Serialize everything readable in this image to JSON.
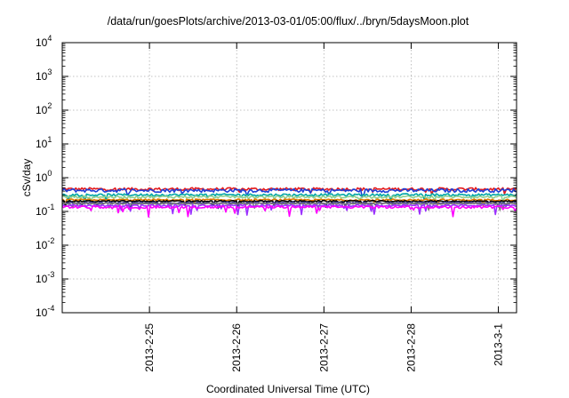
{
  "chart_data": {
    "type": "line",
    "title": "/data/run/goesPlots/archive/2013-03-01/05:00/flux/../bryn/5daysMoon.plot",
    "xlabel": "Coordinated Universal Time (UTC)",
    "ylabel": "cSv/day",
    "yscale": "log",
    "ylim": [
      0.0001,
      10000
    ],
    "xlim": [
      "2013-02-24 00:00",
      "2013-03-01 05:00"
    ],
    "grid": true,
    "y_ticks": [
      {
        "base": "10",
        "exp": "-4"
      },
      {
        "base": "10",
        "exp": "-3"
      },
      {
        "base": "10",
        "exp": "-2"
      },
      {
        "base": "10",
        "exp": "-1"
      },
      {
        "base": "10",
        "exp": "0"
      },
      {
        "base": "10",
        "exp": "1"
      },
      {
        "base": "10",
        "exp": "2"
      },
      {
        "base": "10",
        "exp": "3"
      },
      {
        "base": "10",
        "exp": "4"
      }
    ],
    "x_ticks": [
      {
        "label": "2013-2-25",
        "x": "2013-02-25 00:00"
      },
      {
        "label": "2013-2-26",
        "x": "2013-02-26 00:00"
      },
      {
        "label": "2013-2-27",
        "x": "2013-02-27 00:00"
      },
      {
        "label": "2013-2-28",
        "x": "2013-02-28 00:00"
      },
      {
        "label": "2013-3-1",
        "x": "2013-03-01 00:00"
      }
    ],
    "series": [
      {
        "color": "#e41a1c",
        "level": 0.46,
        "jitter": 0.1
      },
      {
        "color": "#1f3fd6",
        "level": 0.42,
        "jitter": 0.12
      },
      {
        "color": "#00a6a6",
        "level": 0.31,
        "jitter": 0.08
      },
      {
        "color": "#8fd18f",
        "level": 0.27,
        "jitter": 0.08
      },
      {
        "color": "#e07b00",
        "level": 0.22,
        "jitter": 0.06
      },
      {
        "color": "#000000",
        "level": 0.2,
        "jitter": 0.05
      },
      {
        "color": "#3a3a8c",
        "level": 0.18,
        "jitter": 0.05
      },
      {
        "color": "#7a7a7a",
        "level": 0.17,
        "jitter": 0.05
      },
      {
        "color": "#9b30ff",
        "level": 0.15,
        "jitter": 0.06
      },
      {
        "color": "#ff00ff",
        "level": 0.135,
        "jitter": 0.08
      }
    ]
  }
}
